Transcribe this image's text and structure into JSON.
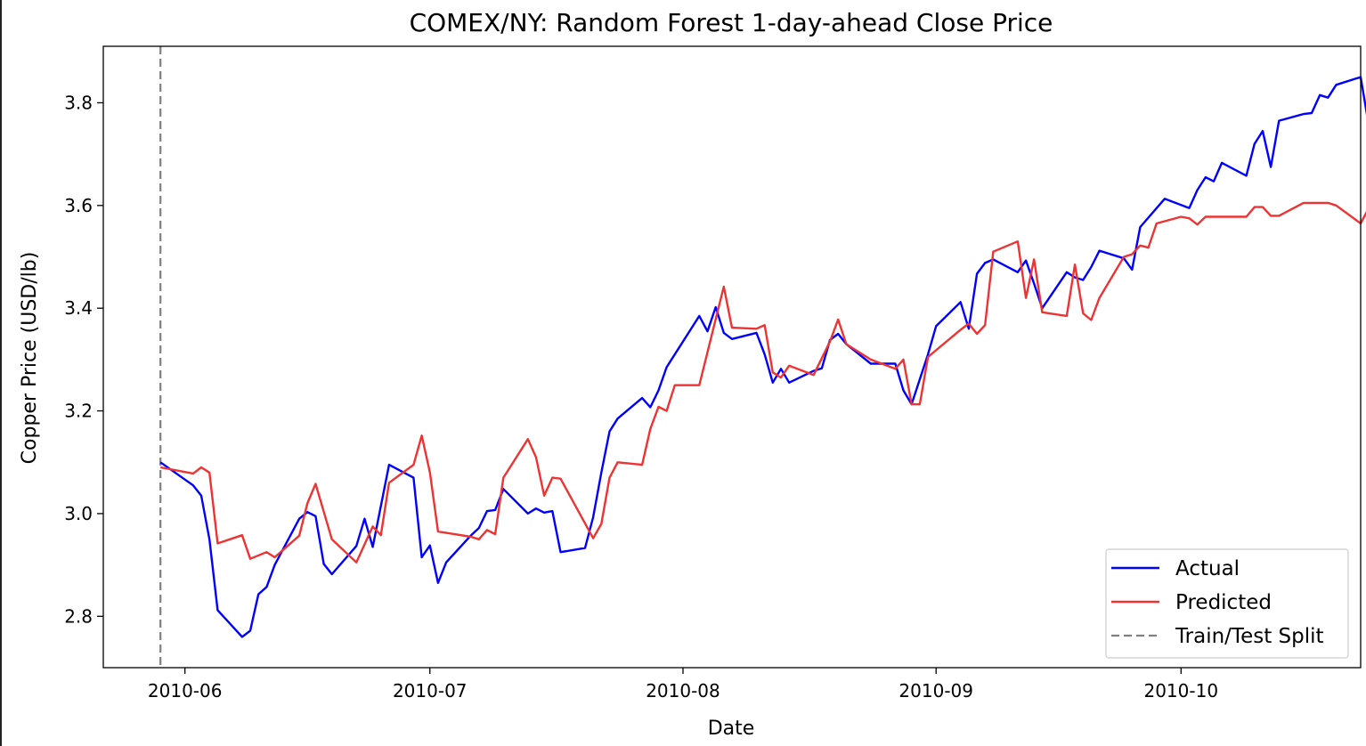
{
  "chart_data": {
    "type": "line",
    "title": "COMEX/NY: Random Forest 1-day-ahead Close Price",
    "xlabel": "Date",
    "ylabel": "Copper Price (USD/lb)",
    "xlim": [
      "2010-05-22",
      "2010-10-23"
    ],
    "ylim": [
      2.7,
      3.91
    ],
    "x_ticks": [
      "2010-06",
      "2010-07",
      "2010-08",
      "2010-09",
      "2010-10"
    ],
    "y_ticks": [
      2.8,
      3.0,
      3.2,
      3.4,
      3.6,
      3.8
    ],
    "y_tick_labels": [
      "2.8",
      "3.0",
      "3.2",
      "3.4",
      "3.6",
      "3.8"
    ],
    "grid": false,
    "legend_position": "lower-right",
    "split_date": "2010-05-29",
    "split_label": "Train/Test Split",
    "series": [
      {
        "name": "Actual",
        "color": "#0000ff",
        "points": [
          [
            "2010-05-29",
            3.1
          ],
          [
            "2010-06-02",
            3.055
          ],
          [
            "2010-06-03",
            3.035
          ],
          [
            "2010-06-04",
            2.95
          ],
          [
            "2010-06-05",
            2.812
          ],
          [
            "2010-06-08",
            2.76
          ],
          [
            "2010-06-09",
            2.772
          ],
          [
            "2010-06-10",
            2.843
          ],
          [
            "2010-06-11",
            2.857
          ],
          [
            "2010-06-12",
            2.9
          ],
          [
            "2010-06-15",
            2.99
          ],
          [
            "2010-06-16",
            3.003
          ],
          [
            "2010-06-17",
            2.995
          ],
          [
            "2010-06-18",
            2.902
          ],
          [
            "2010-06-19",
            2.882
          ],
          [
            "2010-06-22",
            2.937
          ],
          [
            "2010-06-23",
            2.99
          ],
          [
            "2010-06-24",
            2.935
          ],
          [
            "2010-06-26",
            3.095
          ],
          [
            "2010-06-29",
            3.07
          ],
          [
            "2010-06-30",
            2.915
          ],
          [
            "2010-07-01",
            2.938
          ],
          [
            "2010-07-02",
            2.865
          ],
          [
            "2010-07-03",
            2.905
          ],
          [
            "2010-07-06",
            2.957
          ],
          [
            "2010-07-07",
            2.972
          ],
          [
            "2010-07-08",
            3.005
          ],
          [
            "2010-07-09",
            3.007
          ],
          [
            "2010-07-10",
            3.048
          ],
          [
            "2010-07-13",
            3.0
          ],
          [
            "2010-07-14",
            3.01
          ],
          [
            "2010-07-15",
            3.002
          ],
          [
            "2010-07-16",
            3.005
          ],
          [
            "2010-07-17",
            2.925
          ],
          [
            "2010-07-20",
            2.933
          ],
          [
            "2010-07-21",
            2.993
          ],
          [
            "2010-07-22",
            3.08
          ],
          [
            "2010-07-23",
            3.16
          ],
          [
            "2010-07-24",
            3.185
          ],
          [
            "2010-07-27",
            3.225
          ],
          [
            "2010-07-28",
            3.207
          ],
          [
            "2010-07-29",
            3.24
          ],
          [
            "2010-07-30",
            3.285
          ],
          [
            "2010-08-03",
            3.385
          ],
          [
            "2010-08-04",
            3.355
          ],
          [
            "2010-08-05",
            3.402
          ],
          [
            "2010-08-06",
            3.352
          ],
          [
            "2010-08-07",
            3.34
          ],
          [
            "2010-08-10",
            3.352
          ],
          [
            "2010-08-11",
            3.31
          ],
          [
            "2010-08-12",
            3.255
          ],
          [
            "2010-08-13",
            3.282
          ],
          [
            "2010-08-14",
            3.255
          ],
          [
            "2010-08-17",
            3.278
          ],
          [
            "2010-08-18",
            3.283
          ],
          [
            "2010-08-19",
            3.338
          ],
          [
            "2010-08-20",
            3.35
          ],
          [
            "2010-08-21",
            3.33
          ],
          [
            "2010-08-24",
            3.292
          ],
          [
            "2010-08-27",
            3.292
          ],
          [
            "2010-08-28",
            3.24
          ],
          [
            "2010-08-29",
            3.213
          ],
          [
            "2010-08-31",
            3.31
          ],
          [
            "2010-09-01",
            3.365
          ],
          [
            "2010-09-04",
            3.412
          ],
          [
            "2010-09-05",
            3.36
          ],
          [
            "2010-09-06",
            3.467
          ],
          [
            "2010-09-07",
            3.488
          ],
          [
            "2010-09-08",
            3.495
          ],
          [
            "2010-09-11",
            3.47
          ],
          [
            "2010-09-12",
            3.493
          ],
          [
            "2010-09-13",
            3.448
          ],
          [
            "2010-09-14",
            3.4
          ],
          [
            "2010-09-17",
            3.47
          ],
          [
            "2010-09-18",
            3.46
          ],
          [
            "2010-09-19",
            3.455
          ],
          [
            "2010-09-20",
            3.48
          ],
          [
            "2010-09-21",
            3.512
          ],
          [
            "2010-09-24",
            3.497
          ],
          [
            "2010-09-25",
            3.475
          ],
          [
            "2010-09-26",
            3.558
          ],
          [
            "2010-09-29",
            3.613
          ],
          [
            "2010-10-02",
            3.595
          ],
          [
            "2010-10-03",
            3.63
          ],
          [
            "2010-10-04",
            3.655
          ],
          [
            "2010-10-05",
            3.647
          ],
          [
            "2010-10-06",
            3.683
          ],
          [
            "2010-10-09",
            3.658
          ],
          [
            "2010-10-10",
            3.72
          ],
          [
            "2010-10-11",
            3.745
          ],
          [
            "2010-10-12",
            3.675
          ],
          [
            "2010-10-13",
            3.765
          ],
          [
            "2010-10-16",
            3.778
          ],
          [
            "2010-10-17",
            3.78
          ],
          [
            "2010-10-18",
            3.815
          ],
          [
            "2010-10-19",
            3.81
          ],
          [
            "2010-10-20",
            3.835
          ],
          [
            "2010-10-23",
            3.85
          ],
          [
            "2010-10-24",
            3.755
          ]
        ]
      },
      {
        "name": "Predicted",
        "color": "#ee3333",
        "points": [
          [
            "2010-05-29",
            3.09
          ],
          [
            "2010-06-02",
            3.078
          ],
          [
            "2010-06-03",
            3.09
          ],
          [
            "2010-06-04",
            3.08
          ],
          [
            "2010-06-05",
            2.942
          ],
          [
            "2010-06-08",
            2.958
          ],
          [
            "2010-06-09",
            2.912
          ],
          [
            "2010-06-11",
            2.925
          ],
          [
            "2010-06-12",
            2.915
          ],
          [
            "2010-06-15",
            2.957
          ],
          [
            "2010-06-16",
            3.02
          ],
          [
            "2010-06-17",
            3.058
          ],
          [
            "2010-06-19",
            2.95
          ],
          [
            "2010-06-22",
            2.905
          ],
          [
            "2010-06-24",
            2.975
          ],
          [
            "2010-06-25",
            2.958
          ],
          [
            "2010-06-26",
            3.06
          ],
          [
            "2010-06-29",
            3.095
          ],
          [
            "2010-06-30",
            3.152
          ],
          [
            "2010-07-01",
            3.08
          ],
          [
            "2010-07-02",
            2.965
          ],
          [
            "2010-07-06",
            2.955
          ],
          [
            "2010-07-07",
            2.95
          ],
          [
            "2010-07-08",
            2.968
          ],
          [
            "2010-07-09",
            2.96
          ],
          [
            "2010-07-10",
            3.07
          ],
          [
            "2010-07-13",
            3.145
          ],
          [
            "2010-07-14",
            3.11
          ],
          [
            "2010-07-15",
            3.035
          ],
          [
            "2010-07-16",
            3.07
          ],
          [
            "2010-07-17",
            3.068
          ],
          [
            "2010-07-21",
            2.952
          ],
          [
            "2010-07-22",
            2.98
          ],
          [
            "2010-07-23",
            3.07
          ],
          [
            "2010-07-24",
            3.1
          ],
          [
            "2010-07-27",
            3.095
          ],
          [
            "2010-07-28",
            3.165
          ],
          [
            "2010-07-29",
            3.208
          ],
          [
            "2010-07-30",
            3.2
          ],
          [
            "2010-07-31",
            3.25
          ],
          [
            "2010-08-03",
            3.25
          ],
          [
            "2010-08-06",
            3.442
          ],
          [
            "2010-08-07",
            3.362
          ],
          [
            "2010-08-10",
            3.36
          ],
          [
            "2010-08-11",
            3.367
          ],
          [
            "2010-08-12",
            3.275
          ],
          [
            "2010-08-13",
            3.265
          ],
          [
            "2010-08-14",
            3.288
          ],
          [
            "2010-08-17",
            3.27
          ],
          [
            "2010-08-19",
            3.335
          ],
          [
            "2010-08-20",
            3.378
          ],
          [
            "2010-08-21",
            3.33
          ],
          [
            "2010-08-24",
            3.3
          ],
          [
            "2010-08-27",
            3.282
          ],
          [
            "2010-08-28",
            3.3
          ],
          [
            "2010-08-29",
            3.213
          ],
          [
            "2010-08-30",
            3.213
          ],
          [
            "2010-08-31",
            3.305
          ],
          [
            "2010-09-04",
            3.358
          ],
          [
            "2010-09-05",
            3.37
          ],
          [
            "2010-09-06",
            3.35
          ],
          [
            "2010-09-07",
            3.367
          ],
          [
            "2010-09-08",
            3.51
          ],
          [
            "2010-09-11",
            3.53
          ],
          [
            "2010-09-12",
            3.42
          ],
          [
            "2010-09-13",
            3.495
          ],
          [
            "2010-09-14",
            3.392
          ],
          [
            "2010-09-17",
            3.385
          ],
          [
            "2010-09-18",
            3.485
          ],
          [
            "2010-09-19",
            3.39
          ],
          [
            "2010-09-20",
            3.377
          ],
          [
            "2010-09-21",
            3.42
          ],
          [
            "2010-09-24",
            3.5
          ],
          [
            "2010-09-25",
            3.505
          ],
          [
            "2010-09-26",
            3.522
          ],
          [
            "2010-09-27",
            3.518
          ],
          [
            "2010-09-28",
            3.565
          ],
          [
            "2010-10-01",
            3.578
          ],
          [
            "2010-10-02",
            3.575
          ],
          [
            "2010-10-03",
            3.563
          ],
          [
            "2010-10-04",
            3.578
          ],
          [
            "2010-10-09",
            3.578
          ],
          [
            "2010-10-10",
            3.597
          ],
          [
            "2010-10-11",
            3.597
          ],
          [
            "2010-10-12",
            3.58
          ],
          [
            "2010-10-13",
            3.58
          ],
          [
            "2010-10-16",
            3.605
          ],
          [
            "2010-10-19",
            3.605
          ],
          [
            "2010-10-20",
            3.6
          ],
          [
            "2010-10-23",
            3.565
          ],
          [
            "2010-10-24",
            3.595
          ]
        ]
      }
    ],
    "split_color": "#808080"
  }
}
